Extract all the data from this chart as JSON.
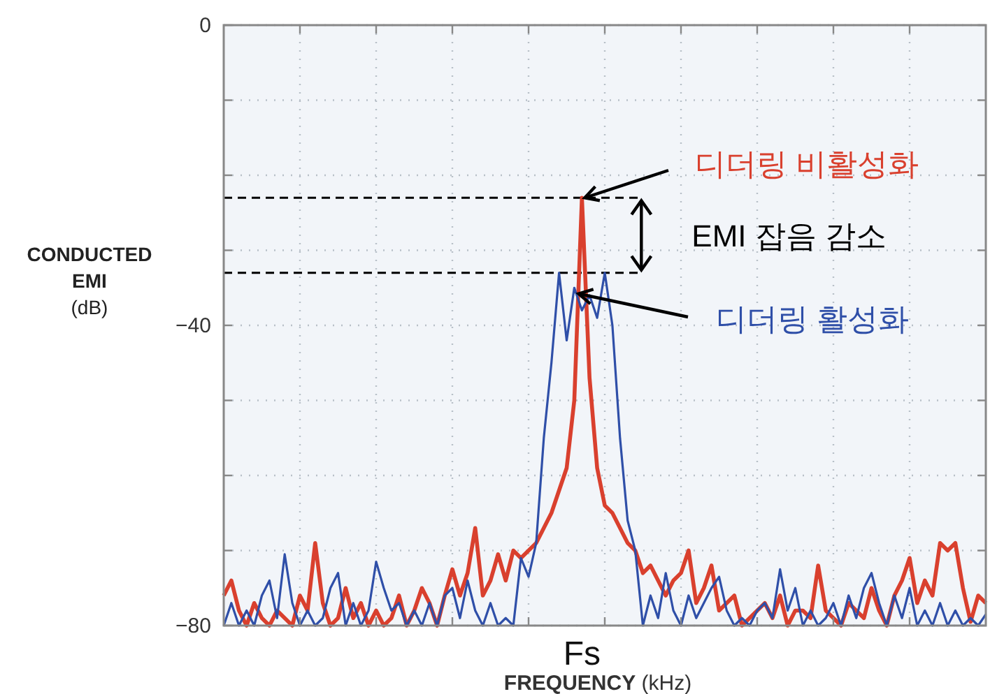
{
  "chart_data": {
    "type": "line",
    "xlabel": "**FREQUENCY** (kHz)",
    "ylabel": "**CONDUCTED EMI** (dB)",
    "ylim": [
      -80,
      0
    ],
    "categories": [
      null,
      null,
      null,
      null,
      null,
      null,
      null,
      null,
      null,
      null,
      null,
      null,
      null,
      null,
      null,
      null,
      null,
      null,
      null,
      null,
      null,
      null,
      null,
      null,
      null,
      null,
      null,
      null,
      null,
      null,
      null,
      null,
      null,
      null,
      null,
      null,
      null,
      null,
      null,
      null,
      null,
      null,
      null,
      null,
      null,
      null,
      null,
      "Fs",
      null,
      null,
      null,
      null,
      null,
      null,
      null,
      null,
      null,
      null,
      null,
      null,
      null,
      null,
      null,
      null,
      null,
      null,
      null,
      null,
      null,
      null,
      null,
      null,
      null,
      null,
      null,
      null,
      null,
      null,
      null,
      null,
      null,
      null,
      null,
      null,
      null,
      null,
      null,
      null,
      null,
      null,
      null,
      null,
      null,
      null,
      null,
      null,
      null,
      null,
      null,
      null,
      null
    ],
    "yticks": [
      {
        "value": 0,
        "label": "0"
      },
      {
        "value": -10,
        "label": null
      },
      {
        "value": -20,
        "label": null
      },
      {
        "value": -30,
        "label": null
      },
      {
        "value": -40,
        "label": "−40"
      },
      {
        "value": -50,
        "label": null
      },
      {
        "value": -60,
        "label": null
      },
      {
        "value": -70,
        "label": null
      },
      {
        "value": -80,
        "label": "−80"
      }
    ],
    "grid": true,
    "line_style": "solid",
    "series": [
      {
        "name": "디더링 비활성화",
        "color": "#d9402e",
        "values": [
          -76,
          -74,
          -78,
          -80,
          -77,
          -79,
          -80,
          -78,
          -79,
          -80,
          -76,
          -78,
          -69,
          -77,
          -80,
          -79,
          -75,
          -79,
          -77,
          -80,
          -78,
          -80,
          -79,
          -76,
          -80,
          -78,
          -75,
          -77,
          -80,
          -76,
          -72.5,
          -76,
          -73,
          -67,
          -76,
          -74,
          -70.5,
          -74,
          -70,
          -71,
          -70,
          -69,
          -67,
          -65,
          -62,
          -59,
          -50,
          -23,
          -47,
          -59,
          -64,
          -65,
          -67,
          -69,
          -70,
          -73,
          -72,
          -74,
          -76,
          -74,
          -73,
          -70,
          -77,
          -75,
          -72,
          -78,
          -77,
          -76,
          -80,
          -79,
          -78,
          -77,
          -79,
          -76,
          -80,
          -78,
          -78,
          -79,
          -72,
          -78,
          -79,
          -80,
          -77,
          -78,
          -79,
          -75,
          -78,
          -80,
          -76,
          -74,
          -71,
          -77,
          -74,
          -76,
          -69,
          -70,
          -69,
          -75,
          -79.5,
          -76,
          -77
        ]
      },
      {
        "name": "디더링 활성화",
        "color": "#2f4fa8",
        "values": [
          -80,
          -77,
          -80,
          -78,
          -80,
          -76,
          -74,
          -79,
          -70.5,
          -77,
          -80,
          -78,
          -80,
          -79,
          -75,
          -73,
          -80,
          -77,
          -80,
          -78,
          -71.5,
          -75,
          -78,
          -77,
          -80,
          -78,
          -80,
          -77,
          -80,
          -76,
          -75,
          -79,
          -74,
          -78,
          -80,
          -77,
          -80,
          -79,
          -80,
          -71,
          -73.5,
          -69,
          -55,
          -45,
          -33,
          -42,
          -35,
          -38,
          -36,
          -39,
          -33,
          -40,
          -55,
          -66,
          -70,
          -80,
          -76,
          -79,
          -73,
          -78,
          -80,
          -76,
          -79,
          -77,
          -75,
          -73.5,
          -78,
          -80,
          -79,
          -80,
          -78,
          -77,
          -79,
          -72.5,
          -78,
          -75,
          -80,
          -78,
          -80,
          -79,
          -77,
          -80,
          -76,
          -79,
          -75,
          -73,
          -77,
          -80,
          -76,
          -79,
          -75,
          -80,
          -78,
          -80,
          -77,
          -80,
          -78,
          -80,
          -79,
          -80,
          -78.5
        ]
      }
    ],
    "ref_lines": [
      {
        "axis": "y",
        "value": -23,
        "color": "#000000",
        "line_style": "dashed"
      },
      {
        "axis": "y",
        "value": -33,
        "color": "#000000",
        "line_style": "dashed"
      }
    ],
    "annotations": [
      "EMI 잡음 감소"
    ]
  }
}
